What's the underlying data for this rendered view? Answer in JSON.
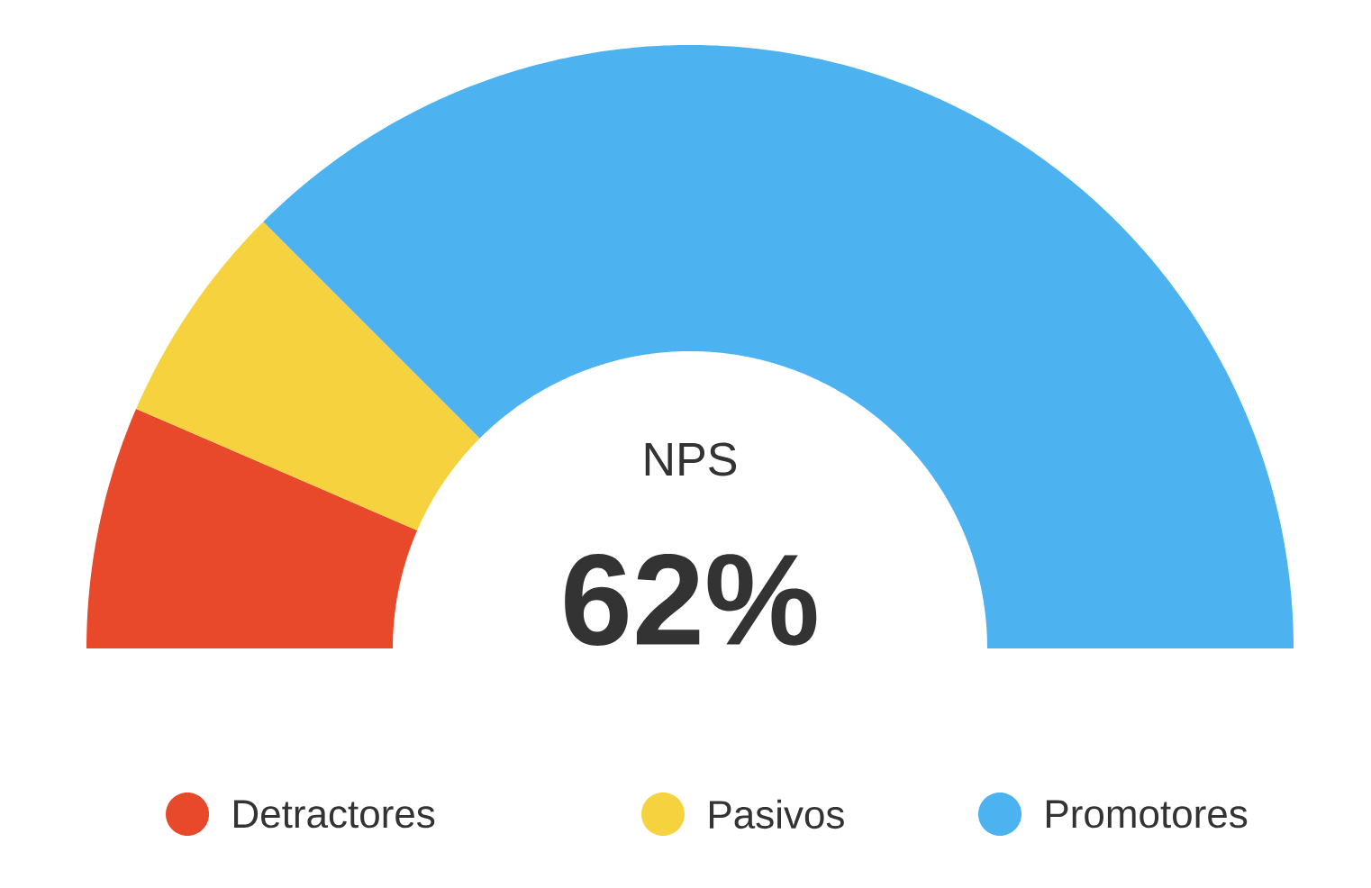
{
  "chart_data": {
    "type": "donut",
    "categories": [
      "Detractores",
      "Pasivos",
      "Promotores"
    ],
    "values": [
      13,
      12,
      75
    ],
    "colors": [
      "#e8492a",
      "#f5d23e",
      "#4db3f0"
    ],
    "annotations": [
      "NPS",
      "62%"
    ],
    "legend": "bottom"
  }
}
